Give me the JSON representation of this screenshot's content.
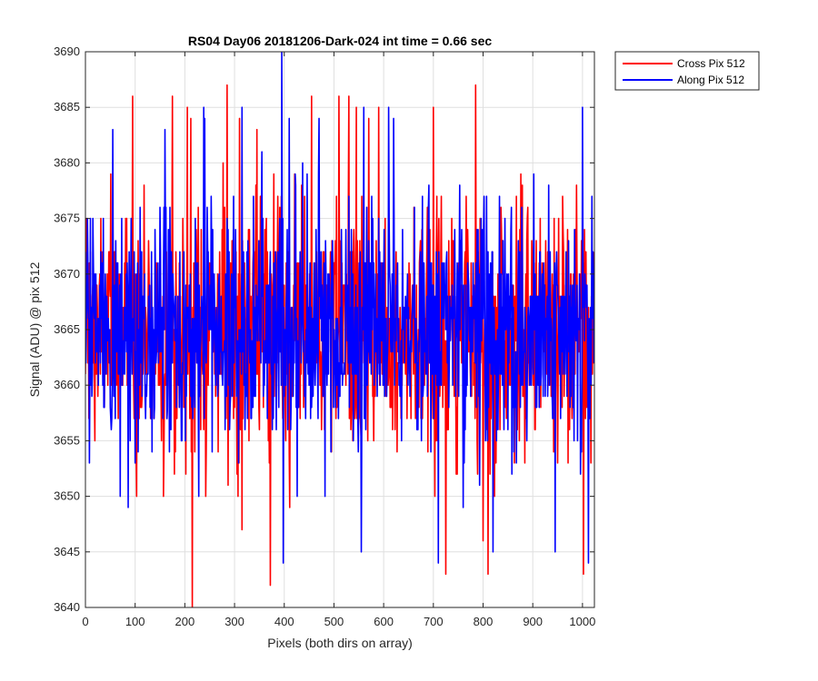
{
  "chart_data": {
    "type": "line",
    "title": "RS04 Day06 20181206-Dark-024 int time = 0.66 sec",
    "xlabel": "Pixels (both dirs on array)",
    "ylabel": "Signal (ADU) @ pix 512",
    "xlim": [
      0,
      1024
    ],
    "ylim": [
      3640,
      3690
    ],
    "xticks": [
      0,
      100,
      200,
      300,
      400,
      500,
      600,
      700,
      800,
      900,
      1000
    ],
    "yticks": [
      3640,
      3645,
      3650,
      3655,
      3660,
      3665,
      3670,
      3675,
      3680,
      3685,
      3690
    ],
    "grid": true,
    "legend_position": "outside-top-right",
    "series": [
      {
        "name": "Cross Pix 512",
        "color": "#ff0000",
        "mean": 3665,
        "std": 5.6,
        "n": 1024,
        "min": 3640,
        "max": 3687,
        "peaks": [
          [
            95,
            3686
          ],
          [
            175,
            3686
          ],
          [
            205,
            3685
          ],
          [
            212,
            3684
          ],
          [
            215,
            3640
          ],
          [
            285,
            3687
          ],
          [
            310,
            3684
          ],
          [
            345,
            3683
          ],
          [
            372,
            3642
          ],
          [
            455,
            3686
          ],
          [
            510,
            3686
          ],
          [
            530,
            3686
          ],
          [
            545,
            3685
          ],
          [
            570,
            3684
          ],
          [
            590,
            3685
          ],
          [
            700,
            3685
          ],
          [
            725,
            3643
          ],
          [
            785,
            3687
          ],
          [
            800,
            3646
          ],
          [
            810,
            3643
          ],
          [
            1002,
            3643
          ]
        ]
      },
      {
        "name": "Along Pix 512",
        "color": "#0000ff",
        "mean": 3665,
        "std": 5.4,
        "n": 1024,
        "min": 3644,
        "max": 3690,
        "peaks": [
          [
            160,
            3683
          ],
          [
            240,
            3684
          ],
          [
            315,
            3685
          ],
          [
            395,
            3690
          ],
          [
            398,
            3644
          ],
          [
            410,
            3684
          ],
          [
            470,
            3684
          ],
          [
            555,
            3645
          ],
          [
            560,
            3685
          ],
          [
            610,
            3685
          ],
          [
            620,
            3684
          ],
          [
            710,
            3644
          ],
          [
            820,
            3645
          ],
          [
            945,
            3645
          ],
          [
            1000,
            3685
          ],
          [
            1012,
            3644
          ]
        ]
      }
    ]
  }
}
